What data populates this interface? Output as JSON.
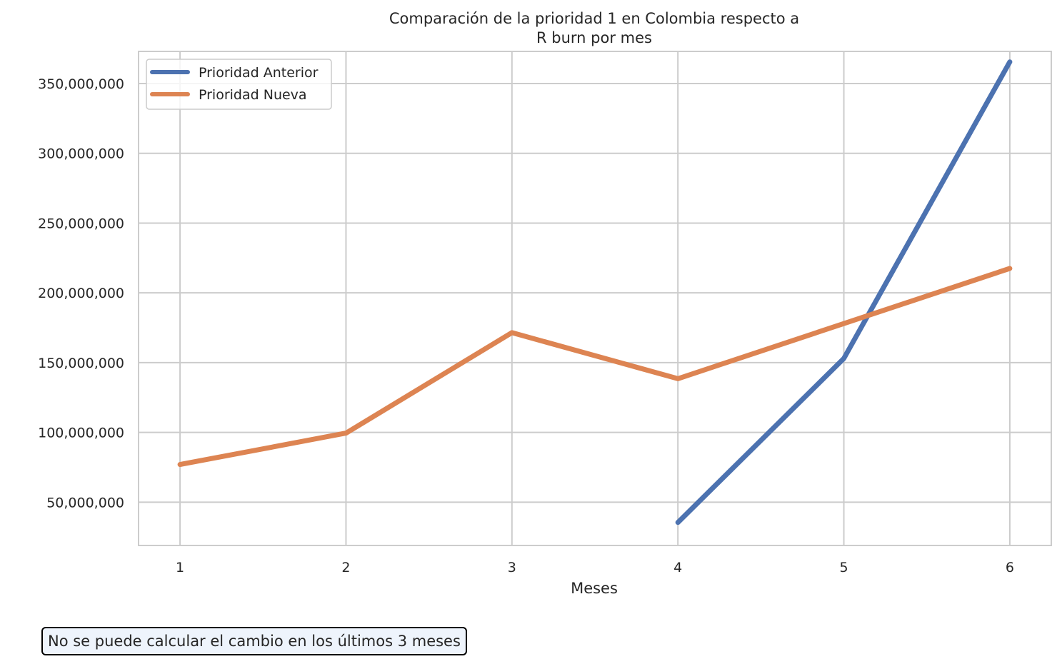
{
  "chart_data": {
    "type": "line",
    "title_lines": [
      "Comparación de la prioridad 1 en Colombia respecto a",
      "R burn por mes"
    ],
    "xlabel": "Meses",
    "ylabel": "",
    "x": [
      1,
      2,
      3,
      4,
      5,
      6
    ],
    "xlim": [
      0.75,
      6.25
    ],
    "ylim": [
      19000000,
      373000000
    ],
    "yticks": [
      50000000,
      100000000,
      150000000,
      200000000,
      250000000,
      300000000,
      350000000
    ],
    "ytick_labels": [
      "50,000,000",
      "100,000,000",
      "150,000,000",
      "200,000,000",
      "250,000,000",
      "300,000,000",
      "350,000,000"
    ],
    "xtick_labels": [
      "1",
      "2",
      "3",
      "4",
      "5",
      "6"
    ],
    "grid": true,
    "legend_position": "top-left",
    "series": [
      {
        "name": "Prioridad Anterior",
        "color": "#4c72b0",
        "values": [
          null,
          null,
          null,
          35500000,
          153000000,
          365500000
        ]
      },
      {
        "name": "Prioridad Nueva",
        "color": "#dd8452",
        "values": [
          77000000,
          99500000,
          171500000,
          138500000,
          178000000,
          217500000
        ]
      }
    ]
  },
  "note": {
    "text": "No se puede calcular el cambio en los últimos 3 meses"
  }
}
